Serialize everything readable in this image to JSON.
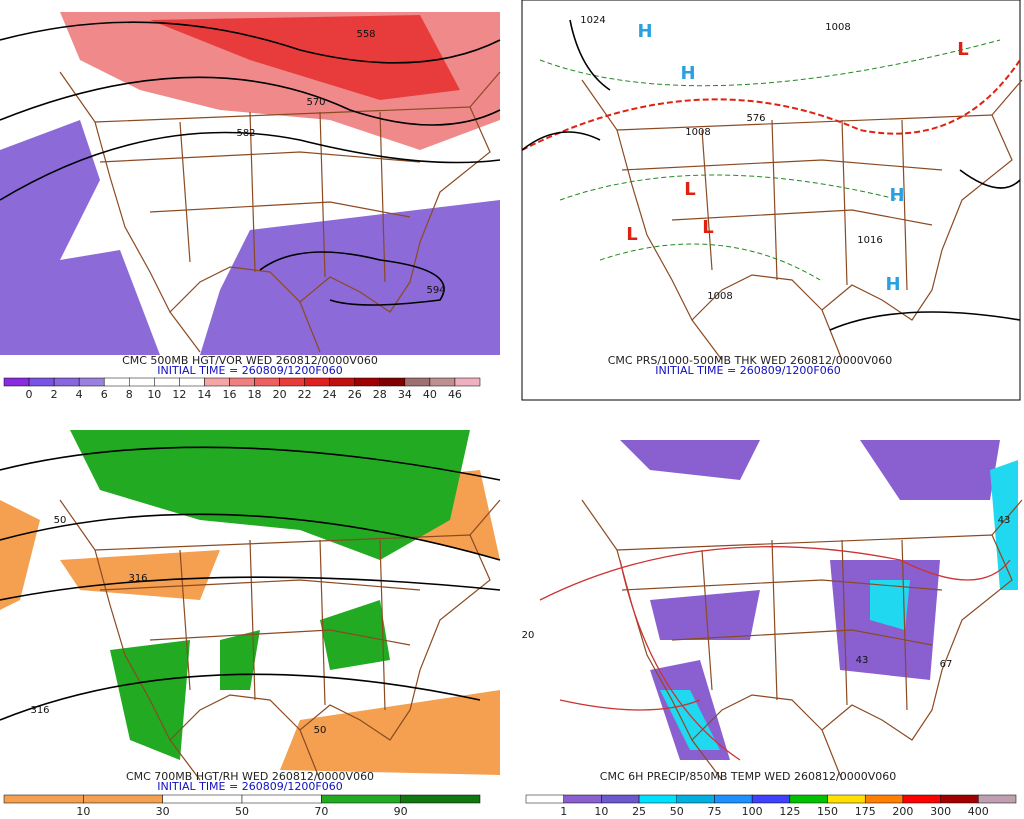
{
  "panels": [
    {
      "caption": "CMC 500MB HGT/VOR WED 260812/0000V060",
      "initial_time": "INITIAL TIME = 260809/1200F060",
      "contour_labels": [
        "558",
        "570",
        "582",
        "594"
      ],
      "colorbar": {
        "labels": [
          0,
          2,
          4,
          6,
          8,
          10,
          12,
          14,
          16,
          18,
          20,
          22,
          24,
          26,
          28,
          34,
          40,
          46
        ],
        "colors": [
          "#8a2be2",
          "#7b52e6",
          "#8766e0",
          "#9c80e0",
          "#ffffff",
          "#ffffff",
          "#ffffff",
          "#ffffff",
          "#f4a6a6",
          "#f08080",
          "#ee6060",
          "#e83c3c",
          "#e02020",
          "#c01010",
          "#a00000",
          "#800000",
          "#a07070",
          "#c09090",
          "#f0b0c0"
        ]
      }
    },
    {
      "caption": "CMC PRS/1000-500MB THK WED 260812/0000V060",
      "initial_time": "INITIAL TIME = 260809/1200F060",
      "contour_labels": [
        "1024",
        "1008",
        "1008",
        "1016",
        "576",
        "1008"
      ],
      "centers": [
        "H",
        "H",
        "H",
        "H",
        "L",
        "L",
        "L",
        "L"
      ]
    },
    {
      "caption": "CMC 700MB HGT/RH WED 260812/0000V060",
      "initial_time": "INITIAL TIME = 260809/1200F060",
      "contour_labels": [
        "50",
        "316",
        "316",
        "50"
      ],
      "colorbar": {
        "labels": [
          10,
          30,
          50,
          70,
          90
        ],
        "colors": [
          "#f4a050",
          "#f4a050",
          "#ffffff",
          "#ffffff",
          "#22aa22",
          "#117711"
        ]
      }
    },
    {
      "caption": "CMC 6H PRECIP/850MB TEMP WED 260812/0000V060",
      "contour_labels": [
        "43",
        "43",
        "67",
        "20"
      ],
      "colorbar": {
        "labels": [
          1,
          10,
          25,
          50,
          75,
          100,
          125,
          150,
          175,
          200,
          300,
          400
        ],
        "colors": [
          "#ffffff",
          "#8a60d0",
          "#6a5acd",
          "#00e0ff",
          "#00b0e0",
          "#1e90ff",
          "#4040ff",
          "#00c000",
          "#ffe000",
          "#ff8000",
          "#ff0000",
          "#a00000",
          "#c0a0b0"
        ]
      }
    }
  ]
}
